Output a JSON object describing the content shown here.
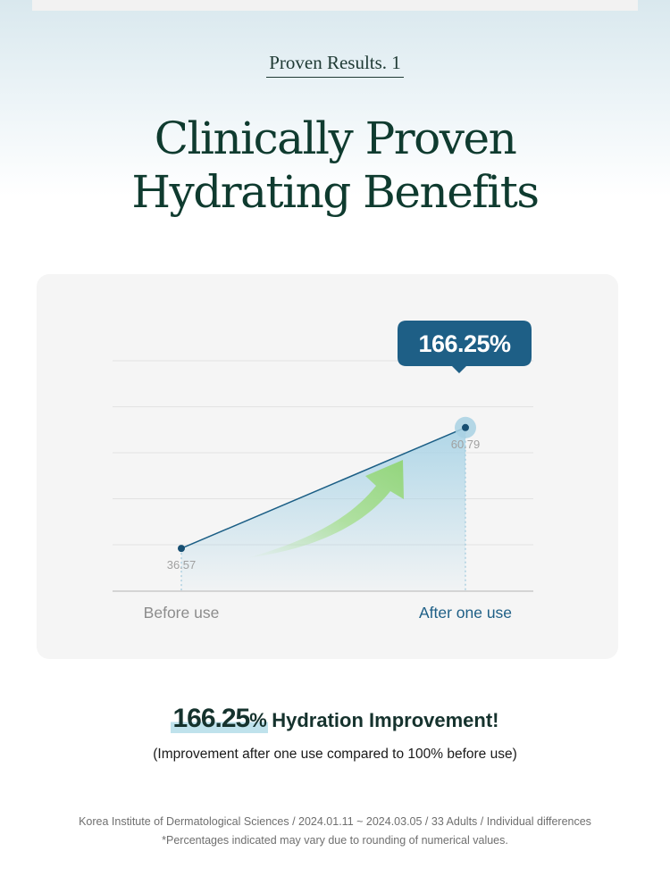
{
  "header": {
    "eyebrow": "Proven Results. 1",
    "title_line1": "Clinically Proven",
    "title_line2": "Hydrating Benefits"
  },
  "chart_data": {
    "type": "line",
    "categories": [
      "Before use",
      "After one use"
    ],
    "values": [
      36.57,
      60.79
    ],
    "value_labels": [
      "36.57",
      "60.79"
    ],
    "callout": "166.25%",
    "ylim": [
      28,
      74
    ],
    "grid": true,
    "colors": {
      "line": "#1b5e85",
      "callout": "#1e5f86",
      "highlight_label": "#1e5f86",
      "arrow": "#9dd98a"
    }
  },
  "result": {
    "value": "166.25",
    "unit": "%",
    "text": "Hydration Improvement!",
    "subtext": "(Improvement after one use compared to 100% before use)"
  },
  "footnotes": {
    "source": "Korea Institute of Dermatological Sciences / 2024.01.11 ~ 2024.03.05 / 33 Adults / Individual differences",
    "note": "*Percentages indicated may vary due to rounding of numerical values."
  }
}
